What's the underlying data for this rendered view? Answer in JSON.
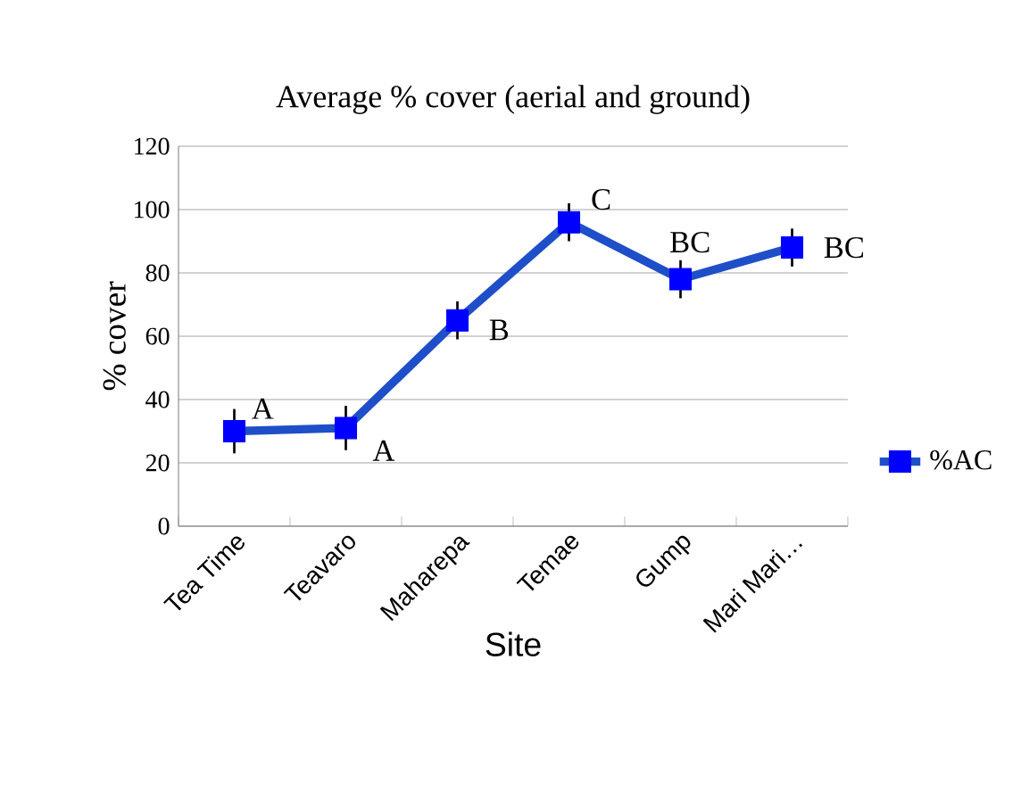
{
  "chart_data": {
    "type": "line",
    "title": "Average % cover (aerial and ground)",
    "xlabel": "Site",
    "ylabel": "% cover",
    "categories": [
      "Tea Time",
      "Teavaro",
      "Maharepa",
      "Temae",
      "Gump",
      "Mari Mari…"
    ],
    "series": [
      {
        "name": "%AC",
        "color": "#1f4fc8",
        "values": [
          30,
          31,
          65,
          96,
          78,
          88
        ],
        "errors": [
          7,
          7,
          6,
          6,
          6,
          6
        ]
      }
    ],
    "ylim": [
      0,
      120
    ],
    "yticks": [
      0,
      20,
      40,
      60,
      80,
      100,
      120
    ],
    "grid": "y",
    "legend": "right",
    "marker": "square",
    "line_style": "solid",
    "annotations": [
      {
        "text": "A",
        "x": "Tea Time",
        "y": 30
      },
      {
        "text": "A",
        "x": "Teavaro",
        "y": 31
      },
      {
        "text": "B",
        "x": "Maharepa",
        "y": 65
      },
      {
        "text": "C",
        "x": "Temae",
        "y": 96
      },
      {
        "text": "BC",
        "x": "Gump",
        "y": 78
      },
      {
        "text": "BC",
        "x": "Mari Mari…",
        "y": 88
      }
    ]
  }
}
